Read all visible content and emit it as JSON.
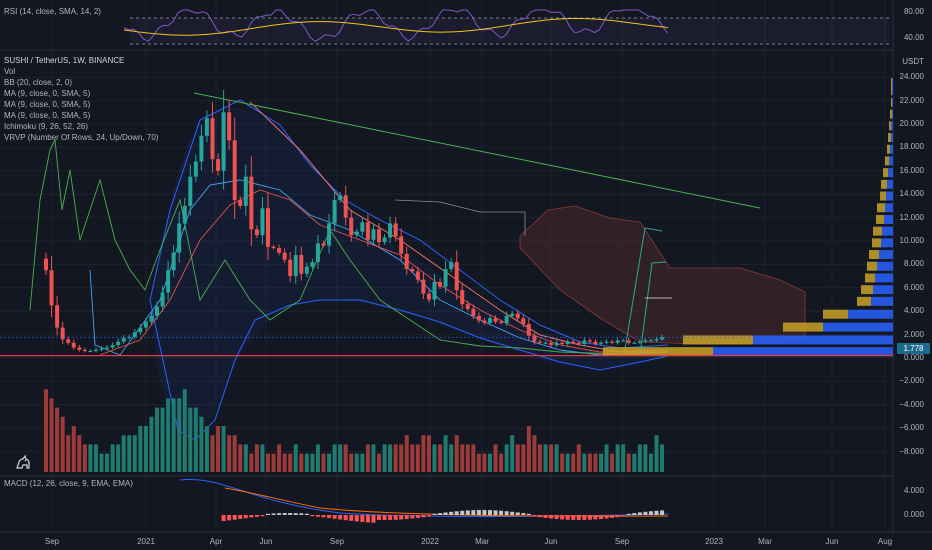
{
  "colors": {
    "background": "#131722",
    "up": "#26a69a",
    "down": "#ef5350",
    "bb": "#2962ff",
    "ma": "#e3524c",
    "rsi": "#7e57c2",
    "rsi_ma": "#f0c419",
    "price_line": "#f23645",
    "kumo": "#4a2a2a",
    "trendline": "#4caf50",
    "vrvp_up": "#2962ff",
    "vrvp_down": "#c9a227",
    "macd": "#2962ff",
    "signal": "#ff6d00"
  },
  "indicators": {
    "rsi": "RSI (14, close, SMA, 14, 2)",
    "main_title": "SUSHI / TetherUS, 1W, BINANCE",
    "vol": "Vol",
    "bb": "BB (20, close, 2, 0)",
    "ma1": "MA (9, close, 0, SMA, 5)",
    "ma2": "MA (9, close, 0, SMA, 5)",
    "ma3": "MA (9, close, 0, SMA, 5)",
    "ichimoku": "Ichimoku (9, 26, 52, 26)",
    "vrvp": "VRVP (Number Of Rows, 24, Up/Down, 70)",
    "macd": "MACD (12, 26, close, 9, EMA, EMA)"
  },
  "axes": {
    "currency": "USDT",
    "price_ticks": [
      "24.000",
      "22.000",
      "20.000",
      "18.000",
      "16.000",
      "14.000",
      "12.000",
      "10.000",
      "8.000",
      "6.000",
      "4.000",
      "2.000",
      "0.000",
      "−2.000",
      "−4.000",
      "−6.000",
      "−8.000"
    ],
    "rsi_ticks": [
      "80.00",
      "40.00"
    ],
    "macd_ticks": [
      "4.000",
      "0.000"
    ],
    "x_ticks": [
      "Sep",
      "2021",
      "Apr",
      "Jun",
      "Sep",
      "2022",
      "Mar",
      "Jun",
      "Sep",
      "2023",
      "Mar",
      "Jun",
      "Aug"
    ],
    "current_price": "1.778"
  },
  "chart_data": {
    "type": "candlestick",
    "title": "SUSHI / TetherUS, 1W, BINANCE",
    "ylabel": "USDT",
    "ylim": [
      -8,
      24
    ],
    "x_range": [
      "2020-08",
      "2023-08"
    ],
    "current_price": 1.778,
    "closes": [
      7.5,
      4.5,
      2.6,
      1.6,
      1.3,
      0.9,
      0.7,
      0.6,
      0.6,
      0.7,
      0.8,
      0.9,
      1.1,
      1.4,
      1.7,
      1.8,
      2.2,
      2.6,
      3.1,
      3.6,
      4.4,
      5.6,
      7.5,
      9.0,
      11.5,
      13.0,
      15.5,
      16.8,
      19.0,
      20.5,
      17.0,
      16.0,
      21.0,
      18.6,
      13.5,
      13.0,
      15.5,
      11.0,
      10.5,
      12.8,
      9.5,
      9.4,
      9.0,
      8.4,
      7.0,
      8.8,
      7.2,
      7.8,
      8.2,
      9.8,
      9.6,
      11.5,
      13.5,
      13.9,
      12.0,
      10.5,
      10.8,
      11.6,
      10.1,
      11.0,
      9.9,
      10.3,
      11.5,
      10.4,
      8.9,
      7.6,
      7.4,
      6.7,
      5.5,
      5.0,
      6.5,
      6.1,
      7.6,
      8.2,
      5.8,
      4.6,
      4.2,
      3.6,
      3.2,
      3.0,
      3.4,
      3.1,
      3.0,
      3.6,
      3.8,
      3.4,
      2.9,
      1.9,
      1.4,
      1.3,
      1.3,
      1.1,
      1.3,
      1.2,
      1.4,
      1.3,
      1.2,
      1.5,
      1.4,
      1.2,
      1.3,
      1.4,
      1.3,
      1.5,
      1.5,
      1.3,
      1.3,
      1.4,
      1.5,
      1.5,
      1.6,
      1.78
    ],
    "volume": [
      9,
      8,
      7,
      6,
      4,
      5,
      4,
      3,
      3,
      3,
      2,
      2,
      3,
      3,
      4,
      4,
      4,
      5,
      5,
      6,
      7,
      7,
      8,
      8,
      8,
      9,
      7,
      7,
      6,
      5,
      4,
      5,
      5,
      4,
      4,
      3,
      3,
      2,
      3,
      3,
      2,
      2,
      3,
      2,
      2,
      3,
      2,
      2,
      2,
      3,
      2,
      2,
      3,
      3,
      3,
      2,
      2,
      2,
      3,
      3,
      2,
      3,
      3,
      3,
      3,
      4,
      3,
      3,
      4,
      4,
      3,
      3,
      4,
      3,
      4,
      3,
      3,
      3,
      2,
      2,
      2,
      3,
      2,
      3,
      4,
      3,
      3,
      5,
      4,
      3,
      3,
      3,
      3,
      2,
      2,
      2,
      3,
      2,
      2,
      2,
      2,
      3,
      2,
      3,
      3,
      2,
      2,
      3,
      3,
      2,
      4,
      3
    ]
  }
}
